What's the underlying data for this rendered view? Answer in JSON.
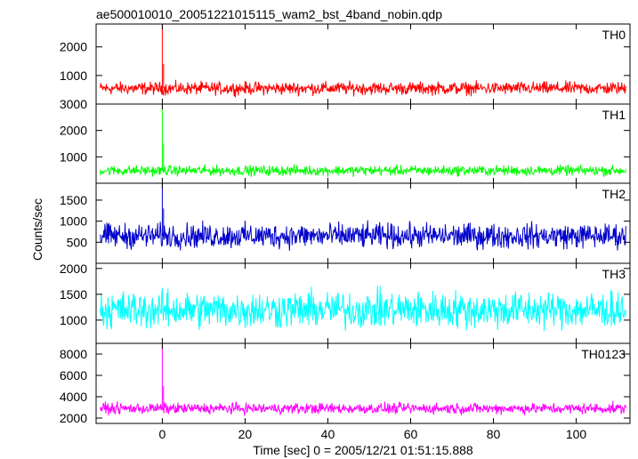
{
  "chart_data": {
    "type": "line",
    "title": "ae500010010_20051221015115_wam2_bst_4band_nobin.qdp",
    "xlabel": "Time [sec] 0 = 2005/12/21 01:51:15.888",
    "ylabel": "Counts/sec",
    "xlim": [
      -16,
      113
    ],
    "x_ticks": [
      0,
      20,
      40,
      60,
      80,
      100
    ],
    "grid": false,
    "series": [
      {
        "name": "TH0",
        "color": "#ff0000",
        "ylim": [
          0,
          2800
        ],
        "y_ticks": [
          1000,
          2000,
          3000
        ],
        "baseline": 550,
        "noise": 200,
        "spikes": [
          [
            0,
            2800
          ],
          [
            0.3,
            1400
          ]
        ]
      },
      {
        "name": "TH1",
        "color": "#00ff00",
        "ylim": [
          0,
          3000
        ],
        "y_ticks": [
          1000,
          2000,
          3000
        ],
        "baseline": 480,
        "noise": 170,
        "spikes": [
          [
            0,
            3000
          ],
          [
            0.3,
            1500
          ]
        ]
      },
      {
        "name": "TH2",
        "color": "#0000cc",
        "ylim": [
          0,
          1900
        ],
        "y_ticks": [
          500,
          1000,
          1500
        ],
        "baseline": 650,
        "noise": 260,
        "spikes": [
          [
            0,
            1900
          ],
          [
            0.3,
            1300
          ]
        ]
      },
      {
        "name": "TH3",
        "color": "#00ffff",
        "ylim": [
          550,
          2100
        ],
        "y_ticks": [
          1000,
          1500,
          2000
        ],
        "baseline": 1200,
        "noise": 320,
        "spikes": []
      },
      {
        "name": "TH0123",
        "color": "#ff00ff",
        "ylim": [
          1500,
          9000
        ],
        "y_ticks": [
          2000,
          4000,
          6000,
          8000
        ],
        "baseline": 2900,
        "noise": 450,
        "spikes": [
          [
            0,
            9000
          ],
          [
            0.3,
            5000
          ]
        ]
      }
    ]
  }
}
